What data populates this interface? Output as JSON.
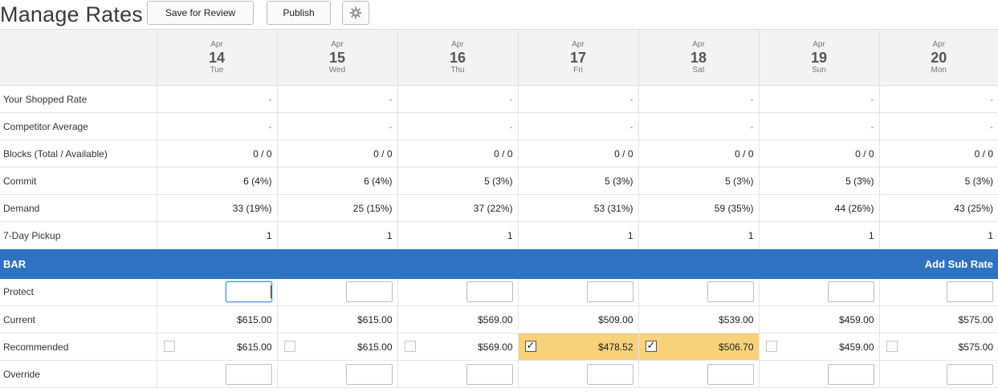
{
  "header": {
    "title": "Manage Rates",
    "save_label": "Save for Review",
    "publish_label": "Publish",
    "settings_icon": "gear-icon"
  },
  "dates": [
    {
      "month": "Apr",
      "day": "14",
      "dow": "Tue"
    },
    {
      "month": "Apr",
      "day": "15",
      "dow": "Wed"
    },
    {
      "month": "Apr",
      "day": "16",
      "dow": "Thu"
    },
    {
      "month": "Apr",
      "day": "17",
      "dow": "Fri"
    },
    {
      "month": "Apr",
      "day": "18",
      "dow": "Sat"
    },
    {
      "month": "Apr",
      "day": "19",
      "dow": "Sun"
    },
    {
      "month": "Apr",
      "day": "20",
      "dow": "Mon"
    }
  ],
  "stats": [
    {
      "label": "Your Shopped Rate",
      "values": [
        "-",
        "-",
        "-",
        "-",
        "-",
        "-",
        "-"
      ]
    },
    {
      "label": "Competitor Average",
      "values": [
        "-",
        "-",
        "-",
        "-",
        "-",
        "-",
        "-"
      ]
    },
    {
      "label": "Blocks (Total / Available)",
      "values": [
        "0 / 0",
        "0 / 0",
        "0 / 0",
        "0 / 0",
        "0 / 0",
        "0 / 0",
        "0 / 0"
      ]
    },
    {
      "label": "Commit",
      "values": [
        "6 (4%)",
        "6 (4%)",
        "5 (3%)",
        "5 (3%)",
        "5 (3%)",
        "5 (3%)",
        "5 (3%)"
      ]
    },
    {
      "label": "Demand",
      "values": [
        "33 (19%)",
        "25 (15%)",
        "37 (22%)",
        "53 (31%)",
        "59 (35%)",
        "44 (26%)",
        "43 (25%)"
      ]
    },
    {
      "label": "7-Day Pickup",
      "values": [
        "1",
        "1",
        "1",
        "1",
        "1",
        "1",
        "1"
      ]
    }
  ],
  "bar": {
    "label": "BAR",
    "add_sub_rate": "Add Sub Rate",
    "color": "#2f72c1"
  },
  "rates": {
    "protect_label": "Protect",
    "current_label": "Current",
    "recommended_label": "Recommended",
    "override_label": "Override",
    "current": [
      "$615.00",
      "$615.00",
      "$569.00",
      "$509.00",
      "$539.00",
      "$459.00",
      "$575.00"
    ],
    "recommended": [
      {
        "value": "$615.00",
        "checked": false
      },
      {
        "value": "$615.00",
        "checked": false
      },
      {
        "value": "$569.00",
        "checked": false
      },
      {
        "value": "$478.52",
        "checked": true
      },
      {
        "value": "$506.70",
        "checked": true
      },
      {
        "value": "$459.00",
        "checked": false
      },
      {
        "value": "$575.00",
        "checked": false
      }
    ],
    "highlight_color": "#f7d27a"
  }
}
